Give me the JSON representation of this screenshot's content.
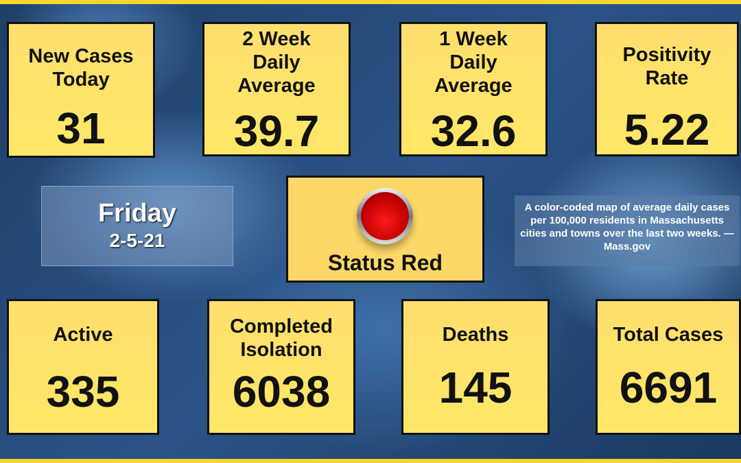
{
  "top_stats": [
    {
      "label": "New Cases Today",
      "value": "31"
    },
    {
      "label": "2 Week Daily Average",
      "value": "39.7"
    },
    {
      "label": "1 Week Daily Average",
      "value": "32.6"
    },
    {
      "label": "Positivity Rate",
      "value": "5.22"
    }
  ],
  "date": {
    "day": "Friday",
    "date": "2-5-21"
  },
  "status": {
    "label": "Status Red",
    "light_color": "#e00000",
    "icon": "red-status-light"
  },
  "caption": "A color-coded map of average daily cases per 100,000 residents in Massachusetts cities and towns over the last two weeks. —Mass.gov",
  "bottom_stats": [
    {
      "label": "Active",
      "value": "335"
    },
    {
      "label": "Completed Isolation",
      "value": "6038"
    },
    {
      "label": "Deaths",
      "value": "145"
    },
    {
      "label": "Total Cases",
      "value": "6691"
    }
  ],
  "colors": {
    "card": "#ffe06c",
    "accent_strip": "#f5d631",
    "background": "#2a5286"
  }
}
